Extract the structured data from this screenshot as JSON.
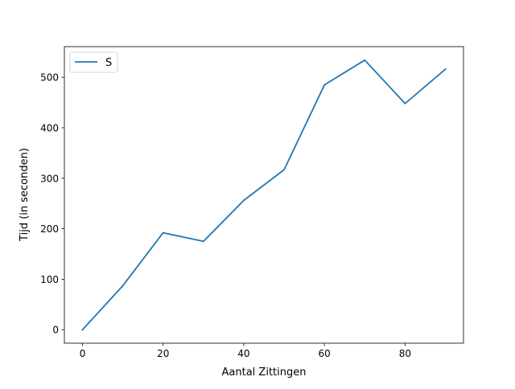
{
  "chart_data": {
    "type": "line",
    "title": "",
    "xlabel": "Aantal Zittingen",
    "ylabel": "Tijd (in seconden)",
    "xlim": [
      -4.5,
      94.5
    ],
    "ylim": [
      -26.7,
      560.7
    ],
    "xticks": [
      0,
      20,
      40,
      60,
      80
    ],
    "yticks": [
      0,
      100,
      200,
      300,
      400,
      500
    ],
    "grid": false,
    "legend_position": "top-left",
    "series": [
      {
        "name": "S",
        "color": "#1f77b4",
        "x": [
          0,
          10,
          20,
          30,
          40,
          50,
          60,
          70,
          80,
          90
        ],
        "y": [
          0,
          87,
          192,
          175,
          256,
          317,
          485,
          534,
          448,
          516
        ]
      }
    ]
  }
}
